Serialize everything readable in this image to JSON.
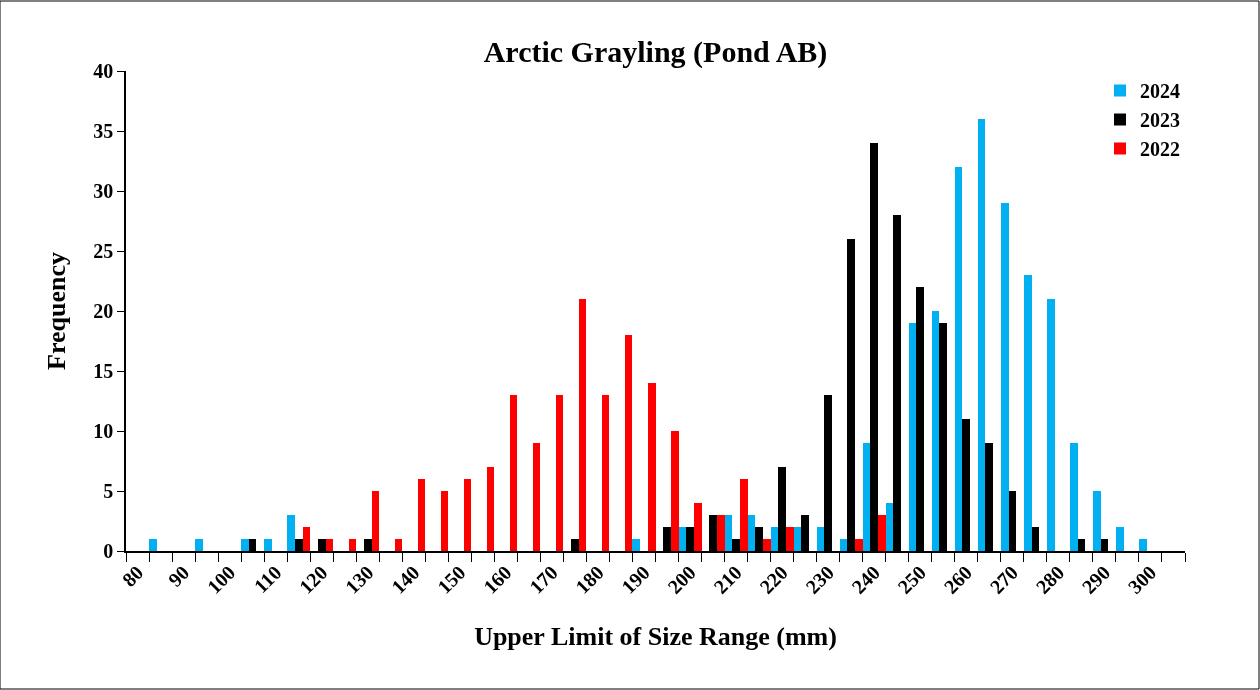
{
  "chart_data": {
    "type": "bar",
    "title": "Arctic Grayling (Pond AB)",
    "xlabel": "Upper Limit of Size Range (mm)",
    "ylabel": "Frequency",
    "categories": [
      "80",
      null,
      "90",
      null,
      "100",
      null,
      "110",
      null,
      "120",
      null,
      "130",
      null,
      "140",
      null,
      "150",
      null,
      "160",
      null,
      "170",
      null,
      "180",
      null,
      "190",
      null,
      "200",
      null,
      "210",
      null,
      "220",
      null,
      "230",
      null,
      "240",
      null,
      "250",
      null,
      "260",
      null,
      "270",
      null,
      "280",
      null,
      "290",
      null,
      "300",
      null
    ],
    "series": [
      {
        "name": "2024",
        "color": "#00b0f0",
        "values": [
          0,
          1,
          0,
          1,
          0,
          1,
          1,
          3,
          0,
          0,
          0,
          0,
          0,
          0,
          0,
          0,
          0,
          0,
          0,
          0,
          0,
          0,
          1,
          0,
          2,
          0,
          3,
          3,
          2,
          2,
          2,
          1,
          9,
          4,
          19,
          20,
          32,
          36,
          29,
          23,
          21,
          9,
          5,
          2,
          1,
          0
        ]
      },
      {
        "name": "2023",
        "color": "#000000",
        "values": [
          0,
          0,
          0,
          0,
          0,
          1,
          0,
          1,
          1,
          0,
          1,
          0,
          0,
          0,
          0,
          0,
          0,
          0,
          0,
          1,
          0,
          0,
          0,
          2,
          2,
          3,
          1,
          2,
          7,
          3,
          13,
          26,
          34,
          28,
          22,
          19,
          11,
          9,
          5,
          2,
          0,
          1,
          1,
          0,
          0,
          0
        ]
      },
      {
        "name": "2022",
        "color": "#ff0000",
        "values": [
          0,
          0,
          0,
          0,
          0,
          0,
          0,
          2,
          1,
          1,
          5,
          1,
          6,
          5,
          6,
          7,
          13,
          9,
          13,
          21,
          13,
          18,
          14,
          10,
          4,
          3,
          6,
          1,
          2,
          0,
          0,
          1,
          3,
          0,
          0,
          0,
          0,
          0,
          0,
          0,
          0,
          0,
          0,
          0,
          0,
          0
        ]
      }
    ],
    "ylim": [
      0,
      40
    ],
    "yticks": [
      0,
      5,
      10,
      15,
      20,
      25,
      30,
      35,
      40
    ],
    "legend": "top right"
  }
}
